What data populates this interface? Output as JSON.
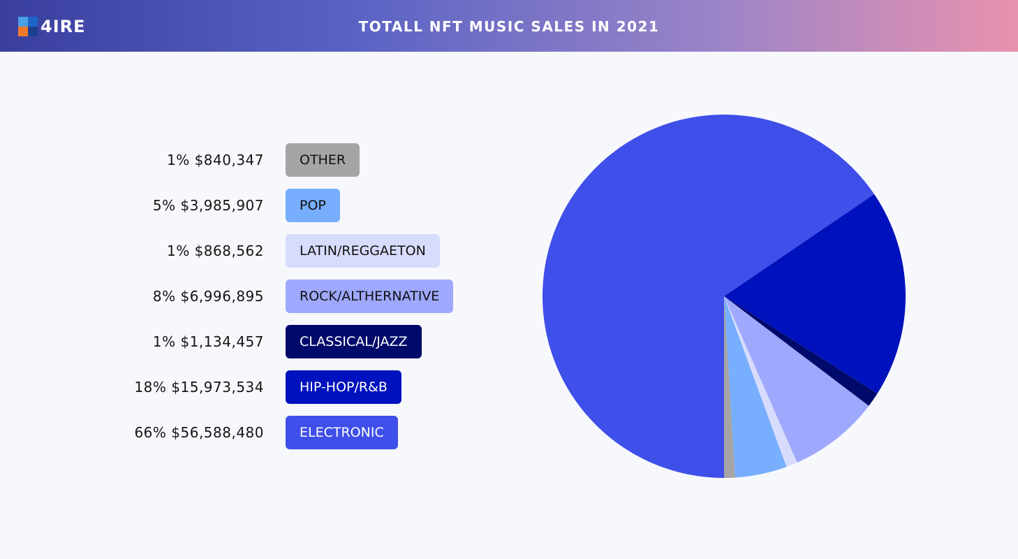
{
  "header": {
    "logo_text": "4IRE",
    "title": "TOTALL NFT MUSIC SALES IN 2021"
  },
  "chart_data": {
    "type": "pie",
    "title": "TOTALL NFT MUSIC SALES IN 2021",
    "slices": [
      {
        "label": "ELECTRONIC",
        "value": 56588480,
        "percent_label": "66%",
        "value_label": "$56,588,480",
        "color": "#3f4fe9",
        "text_color": "#ffffff"
      },
      {
        "label": "HIP-HOP/R&B",
        "value": 15973534,
        "percent_label": "18%",
        "value_label": "$15,973,534",
        "color": "#0012bd",
        "text_color": "#ffffff"
      },
      {
        "label": "CLASSICAL/JAZZ",
        "value": 1134457,
        "percent_label": "1%",
        "value_label": "$1,134,457",
        "color": "#000a6b",
        "text_color": "#ffffff"
      },
      {
        "label": "ROCK/ALTHERNATIVE",
        "value": 6996895,
        "percent_label": "8%",
        "value_label": "$6,996,895",
        "color": "#9ea8fc",
        "text_color": "#111111"
      },
      {
        "label": "LATIN/REGGAETON",
        "value": 868562,
        "percent_label": "1%",
        "value_label": "$868,562",
        "color": "#d8dcfc",
        "text_color": "#111111"
      },
      {
        "label": "POP",
        "value": 3985907,
        "percent_label": "5%",
        "value_label": "$3,985,907",
        "color": "#77aefe",
        "text_color": "#111111"
      },
      {
        "label": "OTHER",
        "value": 840347,
        "percent_label": "1%",
        "value_label": "$840,347",
        "color": "#a5a5a5",
        "text_color": "#111111"
      }
    ]
  }
}
